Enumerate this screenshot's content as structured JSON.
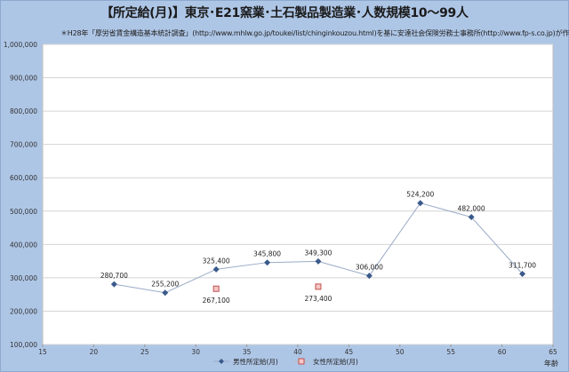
{
  "chart_data": {
    "type": "line",
    "title": "【所定給(月)】東京･E21窯業･土石製品製造業･人数規模10～99人",
    "subtitle": "＊H28年「厚労省賃金構造基本統計調査」(http://www.mhlw.go.jp/toukei/list/chinginkouzou.html)を基に安達社会保険労務士事務所(http://www.fp-s.co.jp)が作成",
    "xlabel": "年齢",
    "ylabel": "",
    "xlim": [
      15,
      65
    ],
    "ylim": [
      100000,
      1000000
    ],
    "xticks": [
      15,
      20,
      25,
      30,
      35,
      40,
      45,
      50,
      55,
      60,
      65
    ],
    "yticks": [
      100000,
      200000,
      300000,
      400000,
      500000,
      600000,
      700000,
      800000,
      900000,
      1000000
    ],
    "ytick_labels": [
      "100,000",
      "200,000",
      "300,000",
      "400,000",
      "500,000",
      "600,000",
      "700,000",
      "800,000",
      "900,000",
      "1,000,000"
    ],
    "grid": true,
    "legend_position": "bottom",
    "series": [
      {
        "name": "男性所定給(月)",
        "color": "#3a5a8c",
        "marker": "diamond",
        "line": true,
        "points": [
          {
            "x": 22,
            "y": 280700,
            "label": "280,700"
          },
          {
            "x": 27,
            "y": 255200,
            "label": "255,200"
          },
          {
            "x": 32,
            "y": 325400,
            "label": "325,400"
          },
          {
            "x": 37,
            "y": 345800,
            "label": "345,800"
          },
          {
            "x": 42,
            "y": 349300,
            "label": "349,300"
          },
          {
            "x": 47,
            "y": 306000,
            "label": "306,000"
          },
          {
            "x": 52,
            "y": 524200,
            "label": "524,200"
          },
          {
            "x": 57,
            "y": 482000,
            "label": "482,000"
          },
          {
            "x": 62,
            "y": 311700,
            "label": "311,700"
          }
        ]
      },
      {
        "name": "女性所定給(月)",
        "color": "#c0504d",
        "fill": "#f4c7c6",
        "marker": "square",
        "line": false,
        "points": [
          {
            "x": 32,
            "y": 267100,
            "label": "267,100"
          },
          {
            "x": 42,
            "y": 273400,
            "label": "273,400"
          }
        ]
      }
    ]
  }
}
